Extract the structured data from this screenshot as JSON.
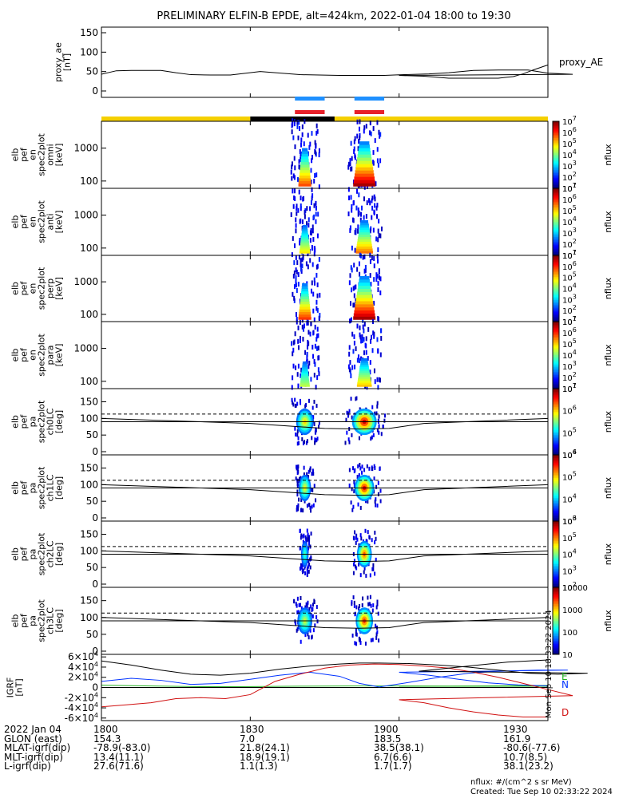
{
  "title": "PRELIMINARY ELFIN-B EPDE, alt=424km, 2022-01-04 18:00 to 19:30",
  "created": "Created: Tue Sep 10 02:33:22 2024",
  "units_note": "nflux: #/(cm^2 s sr MeV)",
  "side_stamp": "Mon Sep 10 18:33:22 2024",
  "colors": {
    "sky_blue": "#1e90ff",
    "red": "#e8202a",
    "gold": "#f5d000",
    "black": "#000000",
    "b_blue": "#0032ff",
    "b_green": "#22b222",
    "b_red": "#d01010"
  },
  "chart_data": [
    {
      "id": "proxy_ae",
      "type": "line",
      "ylabel": [
        "proxy_ae",
        "[nT]"
      ],
      "legend": "proxy_AE",
      "yticks": [
        "150",
        "100",
        "50",
        "0"
      ],
      "ylim": [
        0,
        150
      ],
      "x": [
        1800,
        1803,
        1806,
        1812,
        1815,
        1818,
        1822,
        1826,
        1832,
        1840,
        1848,
        1853,
        1857,
        1861,
        1866,
        1870,
        1875,
        1880,
        1886,
        1890,
        1895,
        1900,
        1905,
        1910,
        1915,
        1920,
        1923,
        1925,
        1927,
        1930
      ],
      "values": [
        43,
        52,
        53,
        53,
        47,
        42,
        41,
        41,
        50,
        42,
        40,
        40,
        40,
        42,
        44,
        47,
        53,
        54,
        54,
        46,
        43,
        40,
        38,
        33,
        33,
        33,
        37,
        44,
        54,
        67
      ]
    },
    {
      "id": "ephemeris_bar",
      "type": "bar",
      "segments": [
        {
          "from": 1800,
          "to": 1830,
          "color": "gold"
        },
        {
          "from": 1830,
          "to": 1847,
          "color": "black"
        },
        {
          "from": 1847,
          "to": 1930,
          "color": "gold"
        }
      ],
      "markers": [
        {
          "from": 1839,
          "to": 1845,
          "color": "sky_blue",
          "row": "upper"
        },
        {
          "from": 1839,
          "to": 1845,
          "color": "red",
          "row": "lower"
        },
        {
          "from": 1851,
          "to": 1857,
          "color": "sky_blue",
          "row": "upper"
        },
        {
          "from": 1851,
          "to": 1857,
          "color": "red",
          "row": "lower"
        }
      ]
    },
    {
      "id": "spec_omni",
      "type": "heatmap",
      "ylabel": [
        "elb",
        "pef",
        "en",
        "spec2plot",
        "omni",
        "[keV]"
      ],
      "yticks": [
        "1000",
        "100"
      ],
      "yscale": "log",
      "ylim": [
        60,
        6500
      ],
      "colorbar": {
        "label": "nflux",
        "ticks": [
          "10^7",
          "10^6",
          "10^5",
          "10^4",
          "10^3",
          "10^2",
          "10^1"
        ],
        "scale": "log"
      },
      "blobs": [
        {
          "x": 1841,
          "width": 2.6,
          "top_keV": 1000,
          "peak": 0.75
        },
        {
          "x": 1853,
          "width": 4.5,
          "top_keV": 1600,
          "peak": 0.95
        }
      ]
    },
    {
      "id": "spec_anti",
      "type": "heatmap",
      "ylabel": [
        "elb",
        "pef",
        "en",
        "spec2plot",
        "anti",
        "[keV]"
      ],
      "yticks": [
        "1000",
        "100"
      ],
      "yscale": "log",
      "ylim": [
        60,
        6500
      ],
      "colorbar": {
        "label": "nflux",
        "ticks": [
          "10^7",
          "10^6",
          "10^5",
          "10^4",
          "10^3",
          "10^2",
          "10^1"
        ],
        "scale": "log"
      },
      "blobs": [
        {
          "x": 1841,
          "width": 2.2,
          "top_keV": 500,
          "peak": 0.55
        },
        {
          "x": 1853,
          "width": 3.5,
          "top_keV": 700,
          "peak": 0.7
        }
      ]
    },
    {
      "id": "spec_perp",
      "type": "heatmap",
      "ylabel": [
        "elb",
        "pef",
        "en",
        "spec2plot",
        "perp",
        "[keV]"
      ],
      "yticks": [
        "1000",
        "100"
      ],
      "yscale": "log",
      "ylim": [
        60,
        6500
      ],
      "colorbar": {
        "label": "nflux",
        "ticks": [
          "10^7",
          "10^6",
          "10^5",
          "10^4",
          "10^3",
          "10^2",
          "10^1"
        ],
        "scale": "log"
      },
      "blobs": [
        {
          "x": 1841,
          "width": 2.6,
          "top_keV": 900,
          "peak": 0.78
        },
        {
          "x": 1853,
          "width": 4.5,
          "top_keV": 1500,
          "peak": 0.95
        }
      ]
    },
    {
      "id": "spec_para",
      "type": "heatmap",
      "ylabel": [
        "elb",
        "pef",
        "en",
        "spec2plot",
        "para",
        "[keV]"
      ],
      "yticks": [
        "1000",
        "100"
      ],
      "yscale": "log",
      "ylim": [
        60,
        6500
      ],
      "colorbar": {
        "label": "nflux",
        "ticks": [
          "10^7",
          "10^6",
          "10^5",
          "10^4",
          "10^3",
          "10^2",
          "10^1"
        ],
        "scale": "log"
      },
      "blobs": [
        {
          "x": 1841,
          "width": 2,
          "top_keV": 400,
          "peak": 0.45
        },
        {
          "x": 1853,
          "width": 3,
          "top_keV": 500,
          "peak": 0.6
        }
      ]
    },
    {
      "id": "pa_ch0LC",
      "type": "heatmap",
      "ylabel": [
        "elb",
        "pef",
        "pa",
        "spec2plot",
        "ch0LC",
        "[deg]"
      ],
      "yticks": [
        "150",
        "100",
        "50",
        "0"
      ],
      "ylim": [
        0,
        180
      ],
      "colorbar": {
        "label": "nflux",
        "ticks": [
          "10^7",
          "10^6",
          "10^5",
          "10^4"
        ],
        "scale": "log"
      },
      "blobs": [
        {
          "x": 1841,
          "width": 3.5,
          "center": 90,
          "peak": 0.6
        },
        {
          "x": 1853,
          "width": 5,
          "center": 90,
          "peak": 0.9
        }
      ]
    },
    {
      "id": "pa_ch1LC",
      "type": "heatmap",
      "ylabel": [
        "elb",
        "pef",
        "pa",
        "spec2plot",
        "ch1LC",
        "[deg]"
      ],
      "yticks": [
        "150",
        "100",
        "50",
        "0"
      ],
      "ylim": [
        0,
        180
      ],
      "colorbar": {
        "label": "nflux",
        "ticks": [
          "10^6",
          "10^5",
          "10^4",
          "10^3"
        ],
        "scale": "log"
      },
      "blobs": [
        {
          "x": 1841,
          "width": 2.5,
          "center": 90,
          "peak": 0.55
        },
        {
          "x": 1853,
          "width": 4,
          "center": 90,
          "peak": 0.85
        }
      ]
    },
    {
      "id": "pa_ch2LC",
      "type": "heatmap",
      "ylabel": [
        "elb",
        "pef",
        "pa",
        "spec2plot",
        "ch2LC",
        "[deg]"
      ],
      "yticks": [
        "150",
        "100",
        "50",
        "0"
      ],
      "ylim": [
        0,
        180
      ],
      "colorbar": {
        "label": "nflux",
        "ticks": [
          "10^6",
          "10^5",
          "10^4",
          "10^3",
          "10^2"
        ],
        "scale": "log"
      },
      "blobs": [
        {
          "x": 1841,
          "width": 1.5,
          "center": 90,
          "peak": 0.35
        },
        {
          "x": 1853,
          "width": 3,
          "center": 90,
          "peak": 0.75
        }
      ]
    },
    {
      "id": "pa_ch3LC",
      "type": "heatmap",
      "ylabel": [
        "elb",
        "pef",
        "pa",
        "spec2plot",
        "ch3LC",
        "[deg]"
      ],
      "yticks": [
        "150",
        "100",
        "50",
        "0"
      ],
      "ylim": [
        0,
        180
      ],
      "colorbar": {
        "label": "nflux",
        "ticks": [
          "10000",
          "1000",
          "100",
          "10"
        ],
        "scale": "log"
      },
      "blobs": [
        {
          "x": 1841,
          "width": 3,
          "center": 90,
          "peak": 0.5
        },
        {
          "x": 1853,
          "width": 3.5,
          "center": 90,
          "peak": 0.8
        }
      ]
    },
    {
      "id": "igrf",
      "type": "line",
      "ylabel": [
        "IGRF",
        "[nT]"
      ],
      "yticks": [
        "6x10^4",
        "4x10^4",
        "2x10^4",
        "0",
        "-2x10^4",
        "-4x10^4",
        "-6x10^4"
      ],
      "ylim": [
        -65000,
        65000
      ],
      "legend": [
        "E",
        "N",
        "D"
      ],
      "series": [
        {
          "name": "E",
          "color": "b_green",
          "x": [
            1800,
            1810,
            1820,
            1830,
            1840,
            1850,
            1860,
            1870,
            1880,
            1890,
            1900,
            1910,
            1920,
            1930
          ],
          "values": [
            4500,
            3000,
            1500,
            1800,
            2600,
            3000,
            3000,
            2800,
            2600,
            2400,
            2400,
            2600,
            3200,
            4000
          ]
        },
        {
          "name": "N",
          "color": "b_blue",
          "x": [
            1800,
            1806,
            1812,
            1818,
            1824,
            1830,
            1836,
            1842,
            1848,
            1852,
            1856,
            1862,
            1868,
            1874,
            1880,
            1888,
            1894,
            1900,
            1906,
            1912,
            1918,
            1924,
            1930
          ],
          "values": [
            12000,
            18000,
            14000,
            6000,
            8000,
            16000,
            24000,
            30000,
            22000,
            8000,
            1000,
            10000,
            20000,
            28000,
            32000,
            34000,
            34000,
            30000,
            24000,
            16000,
            9000,
            5000,
            3000
          ]
        },
        {
          "name": "D",
          "color": "b_red",
          "x": [
            1800,
            1805,
            1810,
            1815,
            1820,
            1825,
            1830,
            1835,
            1840,
            1845,
            1850,
            1855,
            1860,
            1865,
            1870,
            1875,
            1880,
            1885,
            1890,
            1895,
            1900,
            1905,
            1910,
            1915,
            1920,
            1925,
            1930
          ],
          "values": [
            -38000,
            -34000,
            -30000,
            -22000,
            -20000,
            -22000,
            -14000,
            12000,
            26000,
            38000,
            44000,
            46000,
            45000,
            42000,
            38000,
            30000,
            20000,
            8000,
            -4000,
            -16000,
            -24000,
            -30000,
            -40000,
            -48000,
            -54000,
            -58000,
            -58000
          ]
        },
        {
          "name": "total",
          "color": "black",
          "x": [
            1800,
            1806,
            1812,
            1818,
            1824,
            1830,
            1836,
            1842,
            1848,
            1852,
            1856,
            1862,
            1868,
            1874,
            1880,
            1886,
            1892,
            1898,
            1904,
            1910,
            1916,
            1922,
            1930
          ],
          "values": [
            52000,
            44000,
            34000,
            26000,
            24000,
            28000,
            36000,
            42000,
            46000,
            48000,
            48000,
            47000,
            44000,
            40000,
            34000,
            28000,
            26000,
            28000,
            32000,
            38000,
            44000,
            50000,
            54000
          ]
        }
      ]
    }
  ],
  "x_axis": {
    "ticks": [
      "1800",
      "1830",
      "1900",
      "1930"
    ],
    "range": [
      1800,
      1930
    ]
  },
  "footer": {
    "rows": [
      {
        "label": "2022 Jan 04",
        "values": [
          "1800",
          "1830",
          "1900",
          "1930"
        ]
      },
      {
        "label": "GLON (east)",
        "values": [
          "154.3",
          "7.0",
          "183.5",
          "161.9"
        ]
      },
      {
        "label": "MLAT-igrf(dip)",
        "values": [
          "-78.9(-83.0)",
          "21.8(24.1)",
          "38.5(38.1)",
          "-80.6(-77.6)"
        ]
      },
      {
        "label": "MLT-igrf(dip)",
        "values": [
          "13.4(11.1)",
          "18.9(19.1)",
          "6.7(6.6)",
          "10.7(8.5)"
        ]
      },
      {
        "label": "L-igrf(dip)",
        "values": [
          "27.6(71.6)",
          "1.1(1.3)",
          "1.7(1.7)",
          "38.1(23.2)"
        ]
      }
    ]
  }
}
